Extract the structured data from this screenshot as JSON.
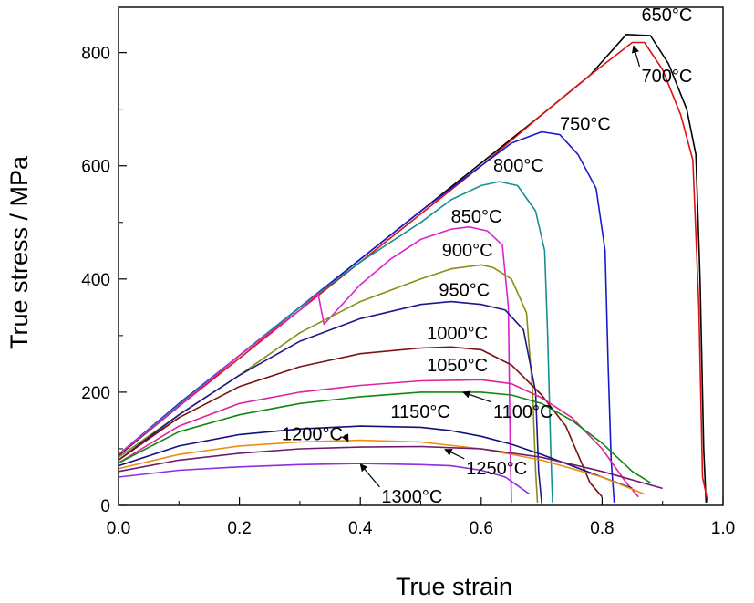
{
  "chart_data": {
    "type": "line",
    "title": "",
    "xlabel": "True strain",
    "ylabel": "True stress / MPa",
    "xlim": [
      0.0,
      1.0
    ],
    "ylim": [
      0,
      880
    ],
    "x_ticks": [
      "0.0",
      "0.2",
      "0.4",
      "0.6",
      "0.8",
      "1.0"
    ],
    "y_ticks": [
      "0",
      "200",
      "400",
      "600",
      "800"
    ],
    "grid": false,
    "legend": "none",
    "series": [
      {
        "name": "650°C",
        "color": "#000000",
        "x": [
          0,
          0.1,
          0.2,
          0.3,
          0.4,
          0.5,
          0.6,
          0.7,
          0.78,
          0.84,
          0.88,
          0.91,
          0.94,
          0.955,
          0.962,
          0.968,
          0.972
        ],
        "y": [
          88,
          175,
          265,
          350,
          435,
          520,
          605,
          690,
          760,
          832,
          830,
          780,
          700,
          620,
          400,
          100,
          5
        ]
      },
      {
        "name": "700°C",
        "color": "#dd1111",
        "x": [
          0,
          0.1,
          0.2,
          0.3,
          0.4,
          0.5,
          0.6,
          0.7,
          0.78,
          0.85,
          0.87,
          0.9,
          0.93,
          0.95,
          0.96,
          0.966,
          0.975
        ],
        "y": [
          90,
          175,
          260,
          345,
          430,
          515,
          600,
          690,
          760,
          818,
          818,
          770,
          690,
          610,
          350,
          50,
          5
        ]
      },
      {
        "name": "750°C",
        "color": "#1a1acc",
        "x": [
          0,
          0.1,
          0.2,
          0.3,
          0.4,
          0.5,
          0.6,
          0.65,
          0.7,
          0.73,
          0.76,
          0.79,
          0.805,
          0.81,
          0.815,
          0.82
        ],
        "y": [
          90,
          180,
          265,
          350,
          435,
          520,
          600,
          640,
          660,
          655,
          620,
          560,
          450,
          250,
          80,
          5
        ]
      },
      {
        "name": "800°C",
        "color": "#159090",
        "x": [
          0,
          0.1,
          0.2,
          0.3,
          0.4,
          0.5,
          0.55,
          0.6,
          0.63,
          0.66,
          0.69,
          0.705,
          0.71,
          0.715,
          0.718
        ],
        "y": [
          90,
          178,
          265,
          350,
          430,
          500,
          540,
          565,
          572,
          565,
          520,
          450,
          300,
          100,
          5
        ]
      },
      {
        "name": "850°C",
        "color": "#dd22cc",
        "x": [
          0,
          0.1,
          0.2,
          0.3,
          0.33,
          0.34,
          0.4,
          0.45,
          0.5,
          0.55,
          0.58,
          0.61,
          0.635,
          0.645,
          0.648,
          0.65
        ],
        "y": [
          90,
          175,
          265,
          345,
          375,
          320,
          390,
          435,
          470,
          488,
          492,
          485,
          460,
          350,
          100,
          5
        ]
      },
      {
        "name": "900°C",
        "color": "#8c8c14",
        "x": [
          0,
          0.1,
          0.2,
          0.3,
          0.4,
          0.5,
          0.55,
          0.6,
          0.62,
          0.65,
          0.675,
          0.685,
          0.69,
          0.693
        ],
        "y": [
          85,
          160,
          230,
          305,
          360,
          400,
          418,
          425,
          420,
          400,
          340,
          200,
          60,
          5
        ]
      },
      {
        "name": "950°C",
        "color": "#1a1a8c",
        "x": [
          0,
          0.1,
          0.2,
          0.3,
          0.4,
          0.5,
          0.55,
          0.6,
          0.64,
          0.67,
          0.69,
          0.695,
          0.7
        ],
        "y": [
          80,
          160,
          230,
          290,
          330,
          355,
          360,
          355,
          345,
          310,
          200,
          60,
          5
        ]
      },
      {
        "name": "1000°C",
        "color": "#7a1010",
        "x": [
          0,
          0.1,
          0.2,
          0.3,
          0.4,
          0.5,
          0.55,
          0.6,
          0.65,
          0.7,
          0.74,
          0.76,
          0.78,
          0.8
        ],
        "y": [
          80,
          155,
          210,
          245,
          268,
          278,
          280,
          275,
          248,
          195,
          140,
          90,
          40,
          15
        ]
      },
      {
        "name": "1050°C",
        "color": "#e0229e",
        "x": [
          0,
          0.1,
          0.2,
          0.3,
          0.4,
          0.5,
          0.6,
          0.65,
          0.7,
          0.75,
          0.8,
          0.84,
          0.86
        ],
        "y": [
          75,
          140,
          180,
          200,
          212,
          220,
          222,
          215,
          190,
          155,
          100,
          40,
          15
        ]
      },
      {
        "name": "1100°C",
        "color": "#118811",
        "x": [
          0,
          0.1,
          0.2,
          0.3,
          0.4,
          0.5,
          0.6,
          0.65,
          0.7,
          0.75,
          0.8,
          0.85,
          0.88
        ],
        "y": [
          75,
          130,
          160,
          180,
          192,
          200,
          200,
          195,
          180,
          150,
          110,
          60,
          40
        ]
      },
      {
        "name": "1150°C",
        "color": "#11117a",
        "x": [
          0,
          0.1,
          0.2,
          0.3,
          0.4,
          0.5,
          0.55,
          0.6,
          0.65,
          0.7,
          0.75,
          0.8,
          0.85
        ],
        "y": [
          70,
          105,
          125,
          135,
          140,
          138,
          132,
          122,
          108,
          90,
          70,
          50,
          30
        ]
      },
      {
        "name": "1200°C",
        "color": "#ee8c11",
        "x": [
          0,
          0.1,
          0.2,
          0.3,
          0.4,
          0.5,
          0.6,
          0.7,
          0.8,
          0.87
        ],
        "y": [
          65,
          90,
          105,
          112,
          115,
          112,
          100,
          80,
          50,
          20
        ]
      },
      {
        "name": "1250°C",
        "color": "#6e1a6e",
        "x": [
          0,
          0.1,
          0.2,
          0.3,
          0.4,
          0.5,
          0.6,
          0.7,
          0.8,
          0.9
        ],
        "y": [
          60,
          80,
          92,
          100,
          103,
          104,
          100,
          85,
          60,
          30
        ]
      },
      {
        "name": "1300°C",
        "color": "#8e2ee0",
        "x": [
          0,
          0.1,
          0.2,
          0.3,
          0.4,
          0.5,
          0.55,
          0.6,
          0.64,
          0.66,
          0.68
        ],
        "y": [
          50,
          62,
          68,
          72,
          74,
          72,
          70,
          62,
          50,
          35,
          20
        ]
      }
    ],
    "annotations": [
      {
        "text": "650°C",
        "x": 0.865,
        "y": 856
      },
      {
        "text": "700°C",
        "x": 0.865,
        "y": 748,
        "arrow_to": [
          0.852,
          812
        ]
      },
      {
        "text": "750°C",
        "x": 0.73,
        "y": 663
      },
      {
        "text": "800°C",
        "x": 0.62,
        "y": 590
      },
      {
        "text": "850°C",
        "x": 0.55,
        "y": 500
      },
      {
        "text": "900°C",
        "x": 0.535,
        "y": 440
      },
      {
        "text": "950°C",
        "x": 0.53,
        "y": 370
      },
      {
        "text": "1000°C",
        "x": 0.51,
        "y": 293
      },
      {
        "text": "1050°C",
        "x": 0.51,
        "y": 237
      },
      {
        "text": "1100°C",
        "x": 0.62,
        "y": 155,
        "arrow_to": [
          0.57,
          200
        ]
      },
      {
        "text": "1150°C",
        "x": 0.45,
        "y": 155
      },
      {
        "text": "1200°C",
        "x": 0.27,
        "y": 115,
        "arrow_to": [
          0.38,
          113
        ]
      },
      {
        "text": "1250°C",
        "x": 0.575,
        "y": 55,
        "arrow_to": [
          0.54,
          99
        ]
      },
      {
        "text": "1300°C",
        "x": 0.435,
        "y": 5,
        "arrow_to": [
          0.4,
          73
        ]
      }
    ]
  }
}
